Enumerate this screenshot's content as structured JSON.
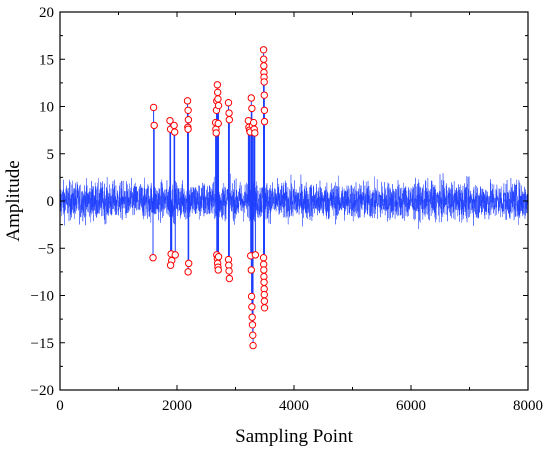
{
  "chart_data": {
    "type": "line",
    "xlabel": "Sampling Point",
    "ylabel": "Amplitude",
    "xlim": [
      0,
      8000
    ],
    "ylim": [
      -20,
      20
    ],
    "x_ticks": [
      0,
      2000,
      4000,
      6000,
      8000
    ],
    "y_ticks": [
      -20,
      -15,
      -10,
      -5,
      0,
      5,
      10,
      15,
      20
    ],
    "x_tick_labels": [
      "0",
      "2000",
      "4000",
      "6000",
      "8000"
    ],
    "y_tick_labels": [
      "−20",
      "−15",
      "−10",
      "−5",
      "0",
      "5",
      "10",
      "15",
      "20"
    ],
    "grid": false,
    "series": [
      {
        "style": "line",
        "color": "#1f3fff",
        "description_values": "dense noise signal, amplitude mostly within about ±3.5",
        "noise_envelope": 3.5
      },
      {
        "style": "markers",
        "marker": "open-circle",
        "color": "#ff0000",
        "points": [
          [
            1600,
            9.9
          ],
          [
            1610,
            8.0
          ],
          [
            1590,
            -6.0
          ],
          [
            1880,
            8.5
          ],
          [
            1890,
            7.6
          ],
          [
            1900,
            -5.6
          ],
          [
            1910,
            -6.3
          ],
          [
            1890,
            -6.8
          ],
          [
            1950,
            8.0
          ],
          [
            1960,
            7.3
          ],
          [
            1970,
            -5.7
          ],
          [
            2180,
            10.6
          ],
          [
            2190,
            9.6
          ],
          [
            2195,
            8.6
          ],
          [
            2185,
            7.8
          ],
          [
            2190,
            7.6
          ],
          [
            2200,
            -6.6
          ],
          [
            2190,
            -7.5
          ],
          [
            2660,
            8.3
          ],
          [
            2665,
            7.6
          ],
          [
            2670,
            7.2
          ],
          [
            2675,
            9.6
          ],
          [
            2680,
            10.6
          ],
          [
            2690,
            12.3
          ],
          [
            2695,
            11.5
          ],
          [
            2700,
            10.8
          ],
          [
            2705,
            8.2
          ],
          [
            2710,
            10.1
          ],
          [
            2680,
            -5.7
          ],
          [
            2690,
            -6.1
          ],
          [
            2695,
            -6.6
          ],
          [
            2700,
            -7.0
          ],
          [
            2705,
            -7.3
          ],
          [
            2710,
            -5.9
          ],
          [
            2880,
            10.4
          ],
          [
            2890,
            9.3
          ],
          [
            2895,
            8.6
          ],
          [
            2880,
            -6.2
          ],
          [
            2885,
            -6.8
          ],
          [
            2890,
            -7.4
          ],
          [
            2895,
            -8.2
          ],
          [
            3220,
            8.5
          ],
          [
            3230,
            7.8
          ],
          [
            3240,
            7.5
          ],
          [
            3250,
            7.3
          ],
          [
            3270,
            10.9
          ],
          [
            3280,
            9.8
          ],
          [
            3290,
            8.0
          ],
          [
            3310,
            8.3
          ],
          [
            3320,
            7.6
          ],
          [
            3330,
            7.2
          ],
          [
            3260,
            -5.8
          ],
          [
            3270,
            -7.3
          ],
          [
            3275,
            -10.1
          ],
          [
            3280,
            -11.2
          ],
          [
            3285,
            -12.3
          ],
          [
            3290,
            -13.1
          ],
          [
            3295,
            -14.2
          ],
          [
            3300,
            -15.3
          ],
          [
            3340,
            -5.7
          ],
          [
            3480,
            16.0
          ],
          [
            3482,
            15.0
          ],
          [
            3484,
            14.3
          ],
          [
            3486,
            13.6
          ],
          [
            3488,
            13.1
          ],
          [
            3490,
            12.6
          ],
          [
            3492,
            11.2
          ],
          [
            3494,
            9.6
          ],
          [
            3496,
            8.4
          ],
          [
            3480,
            -6.0
          ],
          [
            3482,
            -6.7
          ],
          [
            3484,
            -7.3
          ],
          [
            3486,
            -8.0
          ],
          [
            3488,
            -8.6
          ],
          [
            3490,
            -9.3
          ],
          [
            3492,
            -9.9
          ],
          [
            3494,
            -10.6
          ],
          [
            3496,
            -11.3
          ]
        ]
      }
    ]
  }
}
